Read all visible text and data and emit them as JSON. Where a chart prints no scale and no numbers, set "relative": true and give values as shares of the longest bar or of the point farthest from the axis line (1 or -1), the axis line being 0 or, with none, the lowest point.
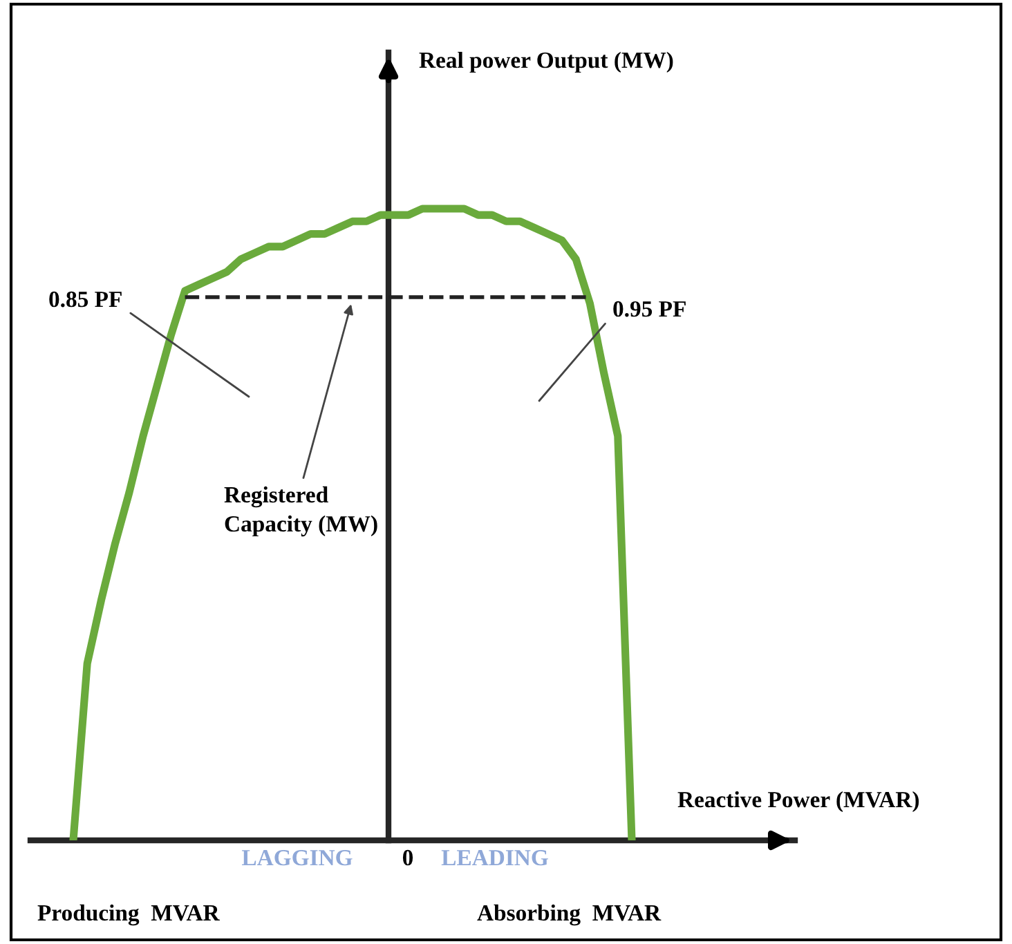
{
  "chart_data": {
    "type": "line",
    "relative": true,
    "xlabel": "Reactive Power (MVAR)",
    "categories": [
      null,
      null,
      null,
      null,
      null,
      null,
      null,
      null,
      null,
      null,
      null,
      null,
      null,
      null,
      null,
      null,
      null,
      null,
      null,
      null,
      null,
      null,
      null,
      null,
      null,
      null,
      null,
      null,
      null,
      null,
      null,
      null,
      null,
      null,
      null,
      null,
      null,
      null,
      null,
      null,
      null
    ],
    "series": [
      {
        "color": "#6aaa3c",
        "values": [
          0,
          0.28,
          0.38,
          0.47,
          0.55,
          0.64,
          0.72,
          0.8,
          0.87,
          0.88,
          0.89,
          0.9,
          0.92,
          0.93,
          0.94,
          0.94,
          0.95,
          0.96,
          0.96,
          0.97,
          0.98,
          0.98,
          0.99,
          0.99,
          0.99,
          1.0,
          1.0,
          1.0,
          1.0,
          0.99,
          0.99,
          0.98,
          0.98,
          0.97,
          0.96,
          0.95,
          0.92,
          0.85,
          0.74,
          0.64,
          0
        ]
      },
      {
        "color": "#222222",
        "line_style": "dashed",
        "values": [
          null,
          null,
          null,
          null,
          null,
          null,
          null,
          null,
          0.86,
          0.86,
          0.86,
          0.86,
          0.86,
          0.86,
          0.86,
          0.86,
          0.86,
          0.86,
          0.86,
          0.86,
          0.86,
          0.86,
          0.86,
          0.86,
          0.86,
          0.86,
          0.86,
          0.86,
          0.86,
          0.86,
          0.86,
          0.86,
          0.86,
          0.86,
          0.86,
          0.86,
          0.86,
          0.86,
          null,
          null,
          null
        ]
      }
    ],
    "annotations": [
      "Real power Output (MW)",
      "0.85 PF",
      "0.95 PF",
      "Registered\nCapacity (MW)",
      "LAGGING",
      "0",
      "LEADING",
      "Producing  MVAR",
      "Absorbing  MVAR"
    ],
    "marker": "none",
    "legend": false
  }
}
